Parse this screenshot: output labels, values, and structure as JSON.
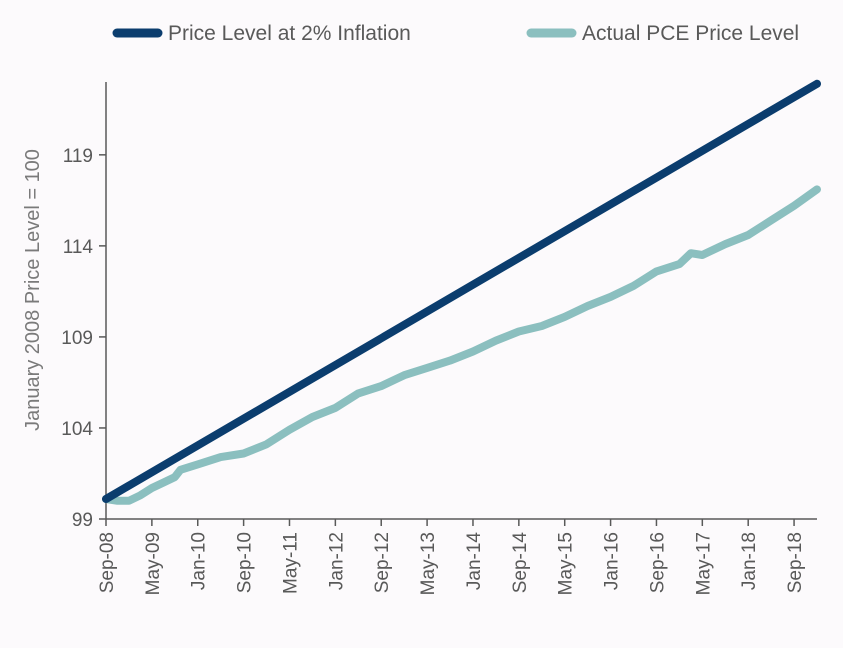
{
  "chart_data": {
    "type": "line",
    "title": "",
    "xlabel": "",
    "ylabel": "January 2008 Price Level = 100",
    "ylim": [
      99,
      123
    ],
    "yticks": [
      99,
      104,
      109,
      114,
      119
    ],
    "xticks": [
      "Sep-08",
      "May-09",
      "Jan-10",
      "Sep-10",
      "May-11",
      "Jan-12",
      "Sep-12",
      "May-13",
      "Jan-14",
      "Sep-14",
      "May-15",
      "Jan-16",
      "Sep-16",
      "May-17",
      "Jan-18",
      "Sep-18"
    ],
    "xrange": [
      "2008-09",
      "2019-01"
    ],
    "grid": false,
    "legend_position": "top",
    "series": [
      {
        "name": "Price Level at 2% Inflation",
        "color": "#0b3d6e",
        "points": [
          [
            "2008-09",
            100.1
          ],
          [
            "2019-01",
            122.9
          ]
        ]
      },
      {
        "name": "Actual PCE Price Level",
        "color": "#8bbfbf",
        "points": [
          [
            "2008-09",
            100.1
          ],
          [
            "2008-11",
            100.0
          ],
          [
            "2009-01",
            100.0
          ],
          [
            "2009-03",
            100.3
          ],
          [
            "2009-05",
            100.7
          ],
          [
            "2009-07",
            101.0
          ],
          [
            "2009-09",
            101.3
          ],
          [
            "2009-10",
            101.7
          ],
          [
            "2010-01",
            102.0
          ],
          [
            "2010-05",
            102.4
          ],
          [
            "2010-09",
            102.6
          ],
          [
            "2011-01",
            103.1
          ],
          [
            "2011-05",
            103.9
          ],
          [
            "2011-09",
            104.6
          ],
          [
            "2012-01",
            105.1
          ],
          [
            "2012-05",
            105.9
          ],
          [
            "2012-09",
            106.3
          ],
          [
            "2013-01",
            106.9
          ],
          [
            "2013-05",
            107.3
          ],
          [
            "2013-09",
            107.7
          ],
          [
            "2014-01",
            108.2
          ],
          [
            "2014-05",
            108.8
          ],
          [
            "2014-09",
            109.3
          ],
          [
            "2015-01",
            109.6
          ],
          [
            "2015-05",
            110.1
          ],
          [
            "2015-09",
            110.7
          ],
          [
            "2016-01",
            111.2
          ],
          [
            "2016-05",
            111.8
          ],
          [
            "2016-09",
            112.6
          ],
          [
            "2017-01",
            113.0
          ],
          [
            "2017-03",
            113.6
          ],
          [
            "2017-05",
            113.5
          ],
          [
            "2017-09",
            114.1
          ],
          [
            "2018-01",
            114.6
          ],
          [
            "2018-05",
            115.4
          ],
          [
            "2018-09",
            116.2
          ],
          [
            "2019-01",
            117.1
          ]
        ]
      }
    ]
  }
}
